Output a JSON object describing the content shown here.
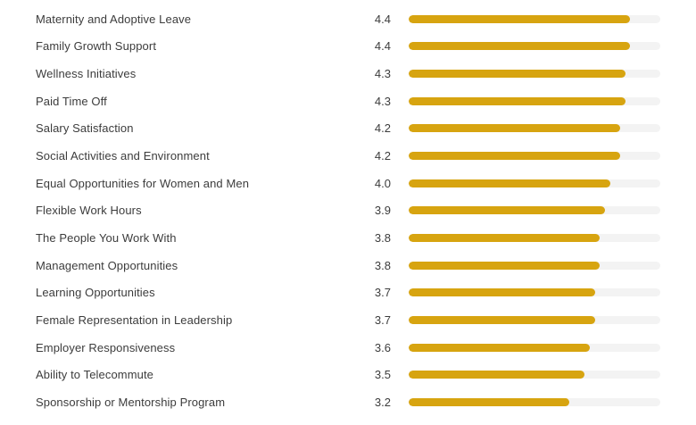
{
  "chart_data": {
    "type": "bar",
    "orientation": "horizontal",
    "title": "",
    "xlabel": "",
    "ylabel": "",
    "xlim": [
      0,
      5
    ],
    "grid": false,
    "legend": false,
    "value_label_position": "left-of-bar",
    "bar_color": "#d7a410",
    "track_color": "#f3f3f3",
    "categories": [
      "Maternity and Adoptive Leave",
      "Family Growth Support",
      "Wellness Initiatives",
      "Paid Time Off",
      "Salary Satisfaction",
      "Social Activities and Environment",
      "Equal Opportunities for Women and Men",
      "Flexible Work Hours",
      "The People You Work With",
      "Management Opportunities",
      "Learning Opportunities",
      "Female Representation in Leadership",
      "Employer Responsiveness",
      "Ability to Telecommute",
      "Sponsorship or Mentorship Program"
    ],
    "values": [
      4.4,
      4.4,
      4.3,
      4.3,
      4.2,
      4.2,
      4.0,
      3.9,
      3.8,
      3.8,
      3.7,
      3.7,
      3.6,
      3.5,
      3.2
    ],
    "value_labels": [
      "4.4",
      "4.4",
      "4.3",
      "4.3",
      "4.2",
      "4.2",
      "4.0",
      "3.9",
      "3.8",
      "3.8",
      "3.7",
      "3.7",
      "3.6",
      "3.5",
      "3.2"
    ]
  }
}
